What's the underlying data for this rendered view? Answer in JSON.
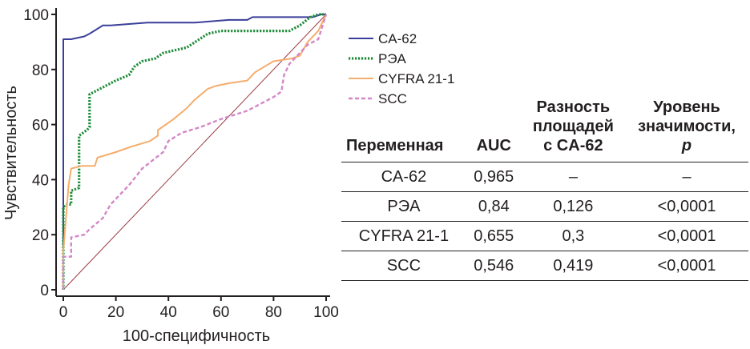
{
  "chart_data": {
    "type": "line",
    "xlabel": "100-специфичность",
    "ylabel": "Чувствительность",
    "xlim": [
      0,
      100
    ],
    "ylim": [
      0,
      100
    ],
    "xticks": [
      "0",
      "20",
      "40",
      "60",
      "80",
      "100"
    ],
    "yticks": [
      "0",
      "20",
      "40",
      "60",
      "80",
      "100"
    ],
    "legend_position": "right",
    "series": [
      {
        "name": "CA-62",
        "color": "#3b3f99",
        "style": "solid",
        "x": [
          0,
          0,
          1,
          3,
          8,
          10,
          15,
          18,
          32,
          40,
          50,
          63,
          70,
          72,
          95,
          98,
          100
        ],
        "y": [
          0,
          91,
          91,
          91,
          92,
          93,
          96,
          96,
          97,
          97,
          97,
          98,
          98,
          99,
          99,
          100,
          100
        ]
      },
      {
        "name": "РЭА",
        "color": "#1e8c3a",
        "style": "dotted",
        "x": [
          0,
          0,
          1,
          3,
          3,
          6,
          6,
          9,
          10,
          10,
          14,
          20,
          25,
          27,
          30,
          35,
          38,
          47,
          55,
          60,
          68,
          80,
          86,
          90,
          94,
          97,
          100
        ],
        "y": [
          0,
          30,
          31,
          31,
          36,
          37,
          56,
          58,
          59,
          71,
          73,
          76,
          78,
          81,
          83,
          84,
          86,
          88,
          93,
          94,
          94,
          94,
          94,
          96,
          99,
          100,
          100
        ]
      },
      {
        "name": "CYFRA 21-1",
        "color": "#f5ad6d",
        "style": "solid",
        "x": [
          0,
          0,
          2,
          3,
          7,
          12,
          13,
          20,
          26,
          33,
          36,
          36,
          42,
          47,
          50,
          55,
          58,
          63,
          70,
          73,
          80,
          87,
          90,
          93,
          97,
          100
        ],
        "y": [
          0,
          14,
          38,
          44,
          45,
          45,
          48,
          50,
          52,
          54,
          56,
          58,
          62,
          66,
          69,
          73,
          74,
          75,
          76,
          79,
          83,
          84,
          85,
          90,
          94,
          100
        ]
      },
      {
        "name": "SCC",
        "color": "#d487c7",
        "style": "dashed",
        "x": [
          0,
          0,
          3,
          3,
          8,
          10,
          15,
          18,
          25,
          30,
          38,
          40,
          45,
          52,
          60,
          70,
          80,
          83,
          84,
          86,
          93,
          97,
          100
        ],
        "y": [
          0,
          12,
          12,
          19,
          20,
          22,
          26,
          31,
          38,
          44,
          50,
          54,
          57,
          59,
          62,
          65,
          70,
          72,
          78,
          82,
          89,
          91,
          100
        ]
      },
      {
        "name": "",
        "color": "#9c3c45",
        "style": "thin-solid",
        "x": [
          0,
          100
        ],
        "y": [
          0,
          100
        ]
      }
    ]
  },
  "table": {
    "headers": {
      "variable": "Переменная",
      "auc": "AUC",
      "diff_l1": "Разность",
      "diff_l2": "площадей",
      "diff_l3": "с CA-62",
      "sig_l1": "Уровень",
      "sig_l2": "значимости,",
      "sig_l3": "p"
    },
    "rows": [
      {
        "variable": "CA-62",
        "auc": "0,965",
        "diff": "–",
        "p": "–"
      },
      {
        "variable": "РЭА",
        "auc": "0,84",
        "diff": "0,126",
        "p": "<0,0001"
      },
      {
        "variable": "CYFRA 21-1",
        "auc": "0,655",
        "diff": "0,3",
        "p": "<0,0001"
      },
      {
        "variable": "SCC",
        "auc": "0,546",
        "diff": "0,419",
        "p": "<0,0001"
      }
    ]
  }
}
